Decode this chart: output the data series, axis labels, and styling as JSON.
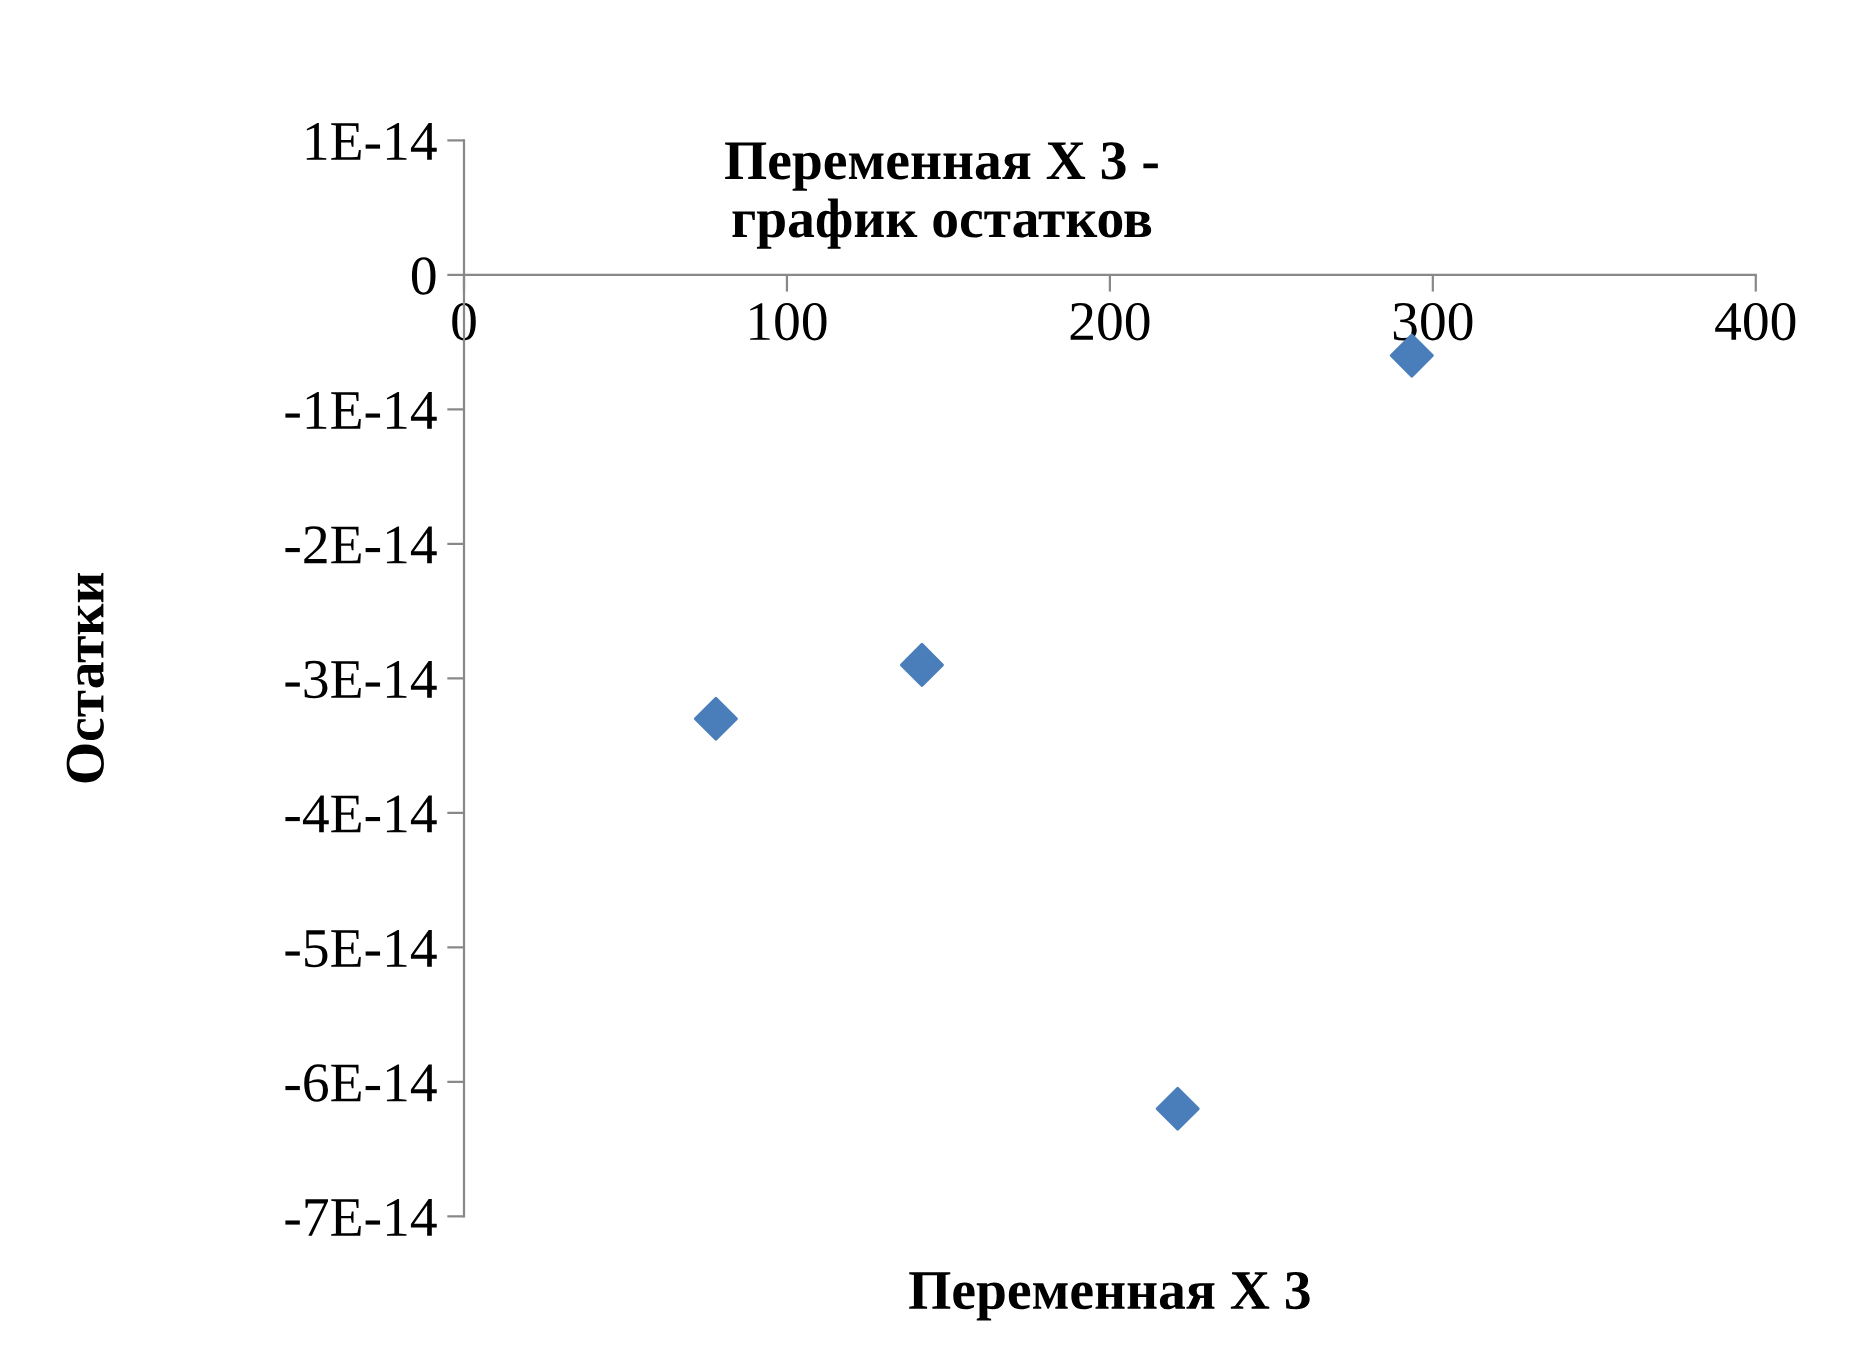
{
  "chart_data": {
    "type": "scatter",
    "title": "Переменная X 3 -\nграфик остатков",
    "xlabel": "Переменная X 3",
    "ylabel": "Остатки",
    "x": [
      78,
      141.8,
      221,
      293.5
    ],
    "series": [
      {
        "color": "#4a7ebb",
        "values": [
          -3.3e-14,
          -2.9e-14,
          -6.2e-14,
          -6e-15
        ]
      }
    ],
    "marker": "diamond",
    "grid": false,
    "xlim": [
      0,
      400
    ],
    "xticks": [
      0,
      100,
      200,
      300,
      400
    ],
    "ylim": [
      -7e-14,
      1e-14
    ],
    "yticks": [
      {
        "value": -7e-14,
        "label": "-7E-14"
      },
      {
        "value": -6e-14,
        "label": "-6E-14"
      },
      {
        "value": -5e-14,
        "label": "-5E-14"
      },
      {
        "value": -4e-14,
        "label": "-4E-14"
      },
      {
        "value": -3e-14,
        "label": "-3E-14"
      },
      {
        "value": -2e-14,
        "label": "-2E-14"
      },
      {
        "value": -1e-14,
        "label": "-1E-14"
      },
      {
        "value": 0,
        "label": "0"
      },
      {
        "value": 1e-14,
        "label": "1E-14"
      }
    ]
  }
}
